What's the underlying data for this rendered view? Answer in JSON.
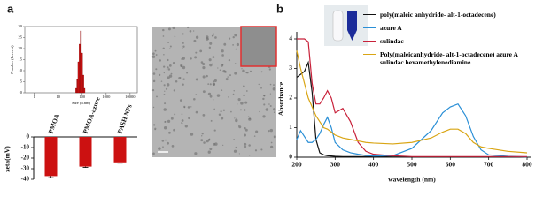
{
  "panel_labels": [
    "a",
    "b"
  ],
  "chart_data": [
    {
      "type": "histogram",
      "xlabel": "Size (d.nm)",
      "ylabel": "Number (Percent)",
      "xscale": "log",
      "bins": [
        53,
        59,
        66,
        74,
        83,
        93,
        104,
        117,
        131
      ],
      "values": [
        2,
        6,
        14,
        22,
        28,
        18,
        8,
        2
      ],
      "color": "#cc1111",
      "xlim": [
        0.4,
        20000
      ],
      "xticks": [
        1,
        10,
        100,
        1000,
        10000
      ],
      "ylim": [
        0,
        30
      ],
      "yticks": [
        0,
        5,
        10,
        15,
        20,
        25,
        30
      ]
    },
    {
      "type": "bar",
      "ylabel": "zeta(mV)",
      "categories": [
        "PMOA",
        "PMOA-azure",
        "PASH NPs"
      ],
      "values": [
        -37,
        -28,
        -24
      ],
      "errors": [
        1.5,
        0.8,
        0.8
      ],
      "color": "#cc1111",
      "ylim": [
        -40,
        0
      ],
      "yticks": [
        0,
        -10,
        -20,
        -30,
        -40
      ]
    },
    {
      "type": "line",
      "xlabel": "wavelength (nm)",
      "ylabel": "Absorbance",
      "x": [
        200,
        210,
        220,
        230,
        240,
        250,
        260,
        270,
        280,
        290,
        300,
        320,
        340,
        360,
        380,
        400,
        450,
        500,
        550,
        580,
        600,
        620,
        640,
        660,
        680,
        700,
        750,
        800
      ],
      "series": [
        {
          "name": "poly(maleic anhydride- alt-1-octadecene)",
          "color": "#111111",
          "values": [
            2.7,
            2.8,
            2.9,
            3.2,
            2.2,
            0.6,
            0.15,
            0.08,
            0.05,
            0.04,
            0.03,
            0.02,
            0.02,
            0.02,
            0.02,
            0.02,
            0.01,
            0.01,
            0.01,
            0.01,
            0.01,
            0.01,
            0.01,
            0.01,
            0.01,
            0.01,
            0.01,
            0.01
          ]
        },
        {
          "name": "azure A",
          "color": "#2a8fd6",
          "values": [
            0.6,
            0.9,
            0.7,
            0.5,
            0.5,
            0.6,
            0.8,
            1.1,
            1.35,
            1.0,
            0.5,
            0.25,
            0.15,
            0.1,
            0.06,
            0.04,
            0.05,
            0.3,
            0.9,
            1.5,
            1.7,
            1.8,
            1.4,
            0.7,
            0.25,
            0.08,
            0.03,
            0.01
          ]
        },
        {
          "name": "sulindac",
          "color": "#c8213a",
          "values": [
            4.0,
            4.0,
            4.0,
            3.9,
            2.5,
            1.8,
            1.8,
            2.0,
            2.25,
            2.0,
            1.5,
            1.65,
            1.2,
            0.5,
            0.2,
            0.1,
            0.05,
            0.02,
            0.02,
            0.02,
            0.02,
            0.02,
            0.02,
            0.02,
            0.02,
            0.02,
            0.02,
            0.02
          ]
        },
        {
          "name": "Poly(maleicanhydride- alt-1-octadecene) azure A sulindac hexamethylenediamine",
          "color": "#d9a514",
          "values": [
            3.6,
            3.0,
            2.5,
            2.0,
            1.7,
            1.4,
            1.2,
            1.0,
            0.95,
            0.85,
            0.75,
            0.65,
            0.6,
            0.55,
            0.5,
            0.48,
            0.45,
            0.5,
            0.65,
            0.85,
            0.95,
            0.95,
            0.8,
            0.5,
            0.35,
            0.3,
            0.2,
            0.15
          ]
        }
      ],
      "xlim": [
        200,
        800
      ],
      "xticks": [
        200,
        300,
        400,
        500,
        600,
        700,
        800
      ],
      "ylim": [
        0,
        4
      ],
      "yticks": [
        0,
        1,
        2,
        3,
        4
      ]
    }
  ]
}
